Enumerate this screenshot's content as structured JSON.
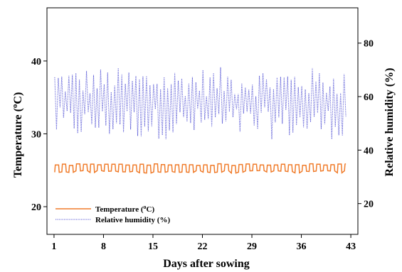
{
  "chart_data": {
    "type": "line",
    "xlabel": "Days after sowing",
    "ylabel_left_prefix": "Temperature (",
    "ylabel_left_sup": "o",
    "ylabel_left_suffix": "C)",
    "ylabel_right": "Relative humidity (%)",
    "x_ticks": [
      1,
      8,
      15,
      22,
      29,
      36,
      43
    ],
    "xlim": [
      0,
      44
    ],
    "y_left_ticks": [
      20,
      30,
      40
    ],
    "ylim_left": [
      16.2,
      47.3
    ],
    "y_right_ticks": [
      20,
      40,
      60,
      80
    ],
    "ylim_right": [
      8.5,
      93.2
    ],
    "legend_position": "bottom-left",
    "series": [
      {
        "name_prefix": "Temperature (",
        "name_sup": "o",
        "name_suffix": "C)",
        "axis": "left",
        "color": "#f07c2b",
        "style": "solid",
        "x_start": 1.1,
        "x_end": 42.3,
        "low": 24.6,
        "high": 25.9,
        "cycles_per_day": 1
      },
      {
        "name": "Relative humidity (%)",
        "axis": "right",
        "color": "#5b5bd6",
        "style": "dotted",
        "x_start": 1.1,
        "x_end": 42.3,
        "mean": 56,
        "low": 44,
        "high": 71,
        "cycles_per_day": 2
      }
    ]
  }
}
